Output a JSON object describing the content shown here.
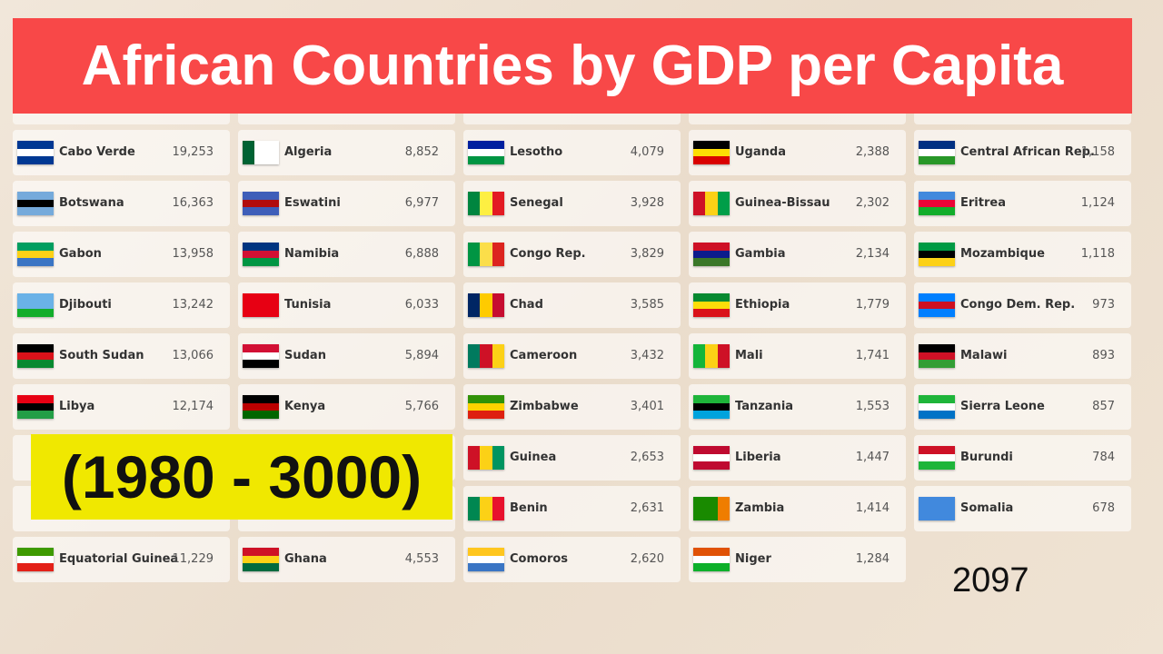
{
  "header": {
    "title": "African Countries by GDP per Capita"
  },
  "banner": "(1980 - 3000)",
  "year": "2097",
  "columns": [
    {
      "rows": [
        {
          "name": "Cabo Verde",
          "value": "19,253",
          "flag": [
            "#003893",
            "#ffffff",
            "#003893"
          ]
        },
        {
          "name": "Botswana",
          "value": "16,363",
          "flag": [
            "#75aadb",
            "#000000",
            "#75aadb"
          ]
        },
        {
          "name": "Gabon",
          "value": "13,958",
          "flag": [
            "#009e60",
            "#fcd116",
            "#3a75c4"
          ]
        },
        {
          "name": "Djibouti",
          "value": "13,242",
          "flag": [
            "#6ab2e7",
            "#6ab2e7",
            "#12ad2b"
          ]
        },
        {
          "name": "South Sudan",
          "value": "13,066",
          "flag": [
            "#000000",
            "#da121a",
            "#078930"
          ]
        },
        {
          "name": "Libya",
          "value": "12,174",
          "flag": [
            "#e70013",
            "#000000",
            "#239e46"
          ]
        },
        null,
        null,
        {
          "name": "Equatorial Guinea",
          "value": "11,229",
          "flag": [
            "#3e9a00",
            "#ffffff",
            "#e32118"
          ]
        }
      ]
    },
    {
      "rows": [
        {
          "name": "Algeria",
          "value": "8,852",
          "flag": [
            "#006233",
            "#ffffff",
            "#ffffff"
          ],
          "stripes": "v"
        },
        {
          "name": "Eswatini",
          "value": "6,977",
          "flag": [
            "#3e5eb9",
            "#b10c0c",
            "#3e5eb9"
          ]
        },
        {
          "name": "Namibia",
          "value": "6,888",
          "flag": [
            "#003580",
            "#d21034",
            "#009543"
          ]
        },
        {
          "name": "Tunisia",
          "value": "6,033",
          "flag": [
            "#e70013",
            "#e70013",
            "#e70013"
          ]
        },
        {
          "name": "Sudan",
          "value": "5,894",
          "flag": [
            "#d21034",
            "#ffffff",
            "#000000"
          ]
        },
        {
          "name": "Kenya",
          "value": "5,766",
          "flag": [
            "#000000",
            "#bb0000",
            "#006600"
          ]
        },
        null,
        null,
        {
          "name": "Ghana",
          "value": "4,553",
          "flag": [
            "#ce1126",
            "#fcd116",
            "#006b3f"
          ]
        }
      ]
    },
    {
      "rows": [
        {
          "name": "Lesotho",
          "value": "4,079",
          "flag": [
            "#00209f",
            "#ffffff",
            "#009543"
          ]
        },
        {
          "name": "Senegal",
          "value": "3,928",
          "flag": [
            "#00853f",
            "#fdef42",
            "#e31b23"
          ],
          "stripes": "v"
        },
        {
          "name": "Congo Rep.",
          "value": "3,829",
          "flag": [
            "#009543",
            "#fbde4a",
            "#dc241f"
          ],
          "stripes": "v"
        },
        {
          "name": "Chad",
          "value": "3,585",
          "flag": [
            "#002664",
            "#fecb00",
            "#c60c30"
          ],
          "stripes": "v"
        },
        {
          "name": "Cameroon",
          "value": "3,432",
          "flag": [
            "#007a5e",
            "#ce1126",
            "#fcd116"
          ],
          "stripes": "v"
        },
        {
          "name": "Zimbabwe",
          "value": "3,401",
          "flag": [
            "#319208",
            "#ffd200",
            "#de2010"
          ]
        },
        {
          "name": "Guinea",
          "value": "2,653",
          "flag": [
            "#ce1126",
            "#fcd116",
            "#009460"
          ],
          "stripes": "v"
        },
        {
          "name": "Benin",
          "value": "2,631",
          "flag": [
            "#008751",
            "#fcd116",
            "#e8112d"
          ],
          "stripes": "v"
        },
        {
          "name": "Comoros",
          "value": "2,620",
          "flag": [
            "#ffc61e",
            "#ffffff",
            "#3a75c4"
          ]
        }
      ]
    },
    {
      "rows": [
        {
          "name": "Uganda",
          "value": "2,388",
          "flag": [
            "#000000",
            "#fcdc04",
            "#d90000"
          ]
        },
        {
          "name": "Guinea-Bissau",
          "value": "2,302",
          "flag": [
            "#ce1126",
            "#fcd116",
            "#009e49"
          ],
          "stripes": "v"
        },
        {
          "name": "Gambia",
          "value": "2,134",
          "flag": [
            "#ce1126",
            "#0c1c8c",
            "#3a7728"
          ]
        },
        {
          "name": "Ethiopia",
          "value": "1,779",
          "flag": [
            "#078930",
            "#fcdd09",
            "#da121a"
          ]
        },
        {
          "name": "Mali",
          "value": "1,741",
          "flag": [
            "#14b53a",
            "#fcd116",
            "#ce1126"
          ],
          "stripes": "v"
        },
        {
          "name": "Tanzania",
          "value": "1,553",
          "flag": [
            "#1eb53a",
            "#000000",
            "#00a3dd"
          ]
        },
        {
          "name": "Liberia",
          "value": "1,447",
          "flag": [
            "#bf0a30",
            "#ffffff",
            "#bf0a30"
          ]
        },
        {
          "name": "Zambia",
          "value": "1,414",
          "flag": [
            "#198a00",
            "#198a00",
            "#ef7d00"
          ],
          "stripes": "v"
        },
        {
          "name": "Niger",
          "value": "1,284",
          "flag": [
            "#e05206",
            "#ffffff",
            "#0db02b"
          ]
        }
      ]
    },
    {
      "rows": [
        {
          "name": "Central African Rep.",
          "value": "1,158",
          "flag": [
            "#003082",
            "#ffffff",
            "#289728"
          ]
        },
        {
          "name": "Eritrea",
          "value": "1,124",
          "flag": [
            "#4189dd",
            "#ea0437",
            "#12ad2b"
          ]
        },
        {
          "name": "Mozambique",
          "value": "1,118",
          "flag": [
            "#009a44",
            "#000000",
            "#fcd116"
          ]
        },
        {
          "name": "Congo Dem. Rep.",
          "value": "973",
          "flag": [
            "#007fff",
            "#ce1021",
            "#007fff"
          ]
        },
        {
          "name": "Malawi",
          "value": "893",
          "flag": [
            "#000000",
            "#ce1126",
            "#339e35"
          ]
        },
        {
          "name": "Sierra Leone",
          "value": "857",
          "flag": [
            "#1eb53a",
            "#ffffff",
            "#0072c6"
          ]
        },
        {
          "name": "Burundi",
          "value": "784",
          "flag": [
            "#ce1126",
            "#ffffff",
            "#1eb53a"
          ]
        },
        {
          "name": "Somalia",
          "value": "678",
          "flag": [
            "#4189dd",
            "#4189dd",
            "#4189dd"
          ]
        }
      ]
    }
  ]
}
